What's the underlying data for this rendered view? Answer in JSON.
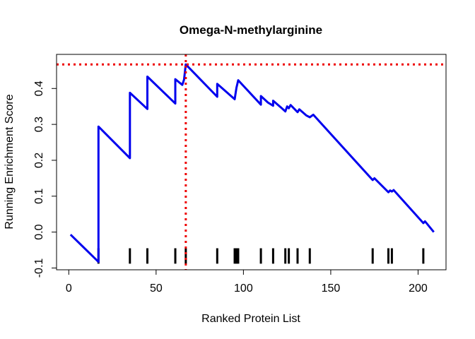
{
  "chart_data": {
    "type": "line",
    "title": "Omega-N-methylarginine",
    "xlabel": "Ranked Protein List",
    "ylabel": "Running Enrichment Score",
    "xlim": [
      -7,
      216
    ],
    "ylim": [
      -0.105,
      0.495
    ],
    "x_ticks": [
      0,
      50,
      100,
      150,
      200
    ],
    "y_ticks": [
      -0.1,
      0.0,
      0.1,
      0.2,
      0.3,
      0.4
    ],
    "y_tick_labels": [
      "-0.1",
      "0.0",
      "0.1",
      "0.2",
      "0.3",
      "0.4"
    ],
    "grid": false,
    "line_color": "#0000ee",
    "hit_color": "#000000",
    "marker_color": "#ee0000",
    "series": [
      {
        "x": [
          1,
          17,
          17,
          35,
          35,
          45,
          45,
          61,
          61,
          65,
          66,
          67,
          85,
          85,
          95,
          96,
          97,
          110,
          110,
          114,
          117,
          117,
          122,
          124,
          125,
          126,
          127,
          131,
          132,
          136,
          138,
          140,
          174,
          175,
          183,
          184,
          185,
          186,
          203,
          204,
          205,
          209
        ],
        "y": [
          -0.007,
          -0.083,
          0.294,
          0.206,
          0.388,
          0.343,
          0.433,
          0.358,
          0.426,
          0.41,
          0.425,
          0.467,
          0.377,
          0.413,
          0.37,
          0.402,
          0.423,
          0.355,
          0.379,
          0.361,
          0.352,
          0.366,
          0.345,
          0.336,
          0.35,
          0.345,
          0.354,
          0.334,
          0.342,
          0.325,
          0.32,
          0.327,
          0.145,
          0.15,
          0.111,
          0.116,
          0.113,
          0.117,
          0.025,
          0.03,
          0.024,
          0.0
        ]
      }
    ],
    "hits": [
      17,
      35,
      45,
      61,
      67,
      85,
      95,
      96,
      97,
      110,
      117,
      124,
      126,
      131,
      138,
      174,
      183,
      185,
      203
    ],
    "max_score": {
      "x": 67,
      "y": 0.467
    }
  }
}
